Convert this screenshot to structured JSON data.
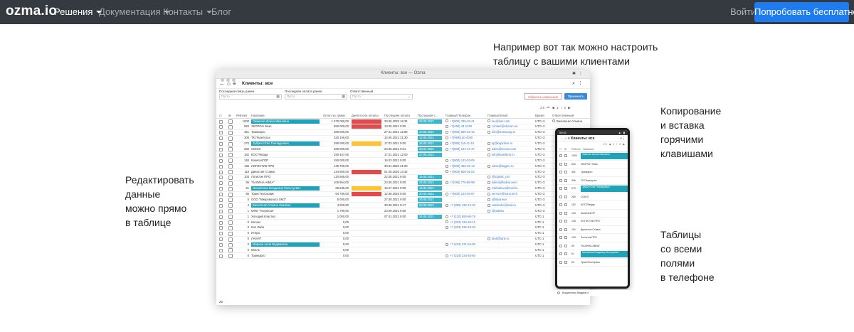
{
  "navbar": {
    "brand": "ozma.io",
    "items": [
      {
        "label": "Решения",
        "has_caret": true,
        "active": true
      },
      {
        "label": "Документация",
        "has_caret": true,
        "active": false
      },
      {
        "label": "Контакты",
        "has_caret": true,
        "active": false
      },
      {
        "label": "Блог",
        "has_caret": false,
        "active": false
      }
    ],
    "login": "Войти",
    "cta": "Попробовать бесплатно",
    "bg_color": "#343a40",
    "cta_color": "#1e7bf0"
  },
  "callouts": {
    "top_line1": "Например вот так можно настроить",
    "top_line2": "таблицу с вашими клиентами",
    "left_line1": "Редактировать",
    "left_line2": "данные",
    "left_line3": "можно прямо",
    "left_line4": "в таблице",
    "right1_line1": "Копирование",
    "right1_line2": "и вставка",
    "right1_line3": "горячими",
    "right1_line4": "клавишами",
    "right2_line1": "Таблицы",
    "right2_line2": "со всеми",
    "right2_line3": "полями",
    "right2_line4": "в телефоне"
  },
  "desktop": {
    "window_title": "Клиенты: все — Ozma",
    "page_title": "Клиенты: все",
    "filters": [
      {
        "label": "Последняя связь ранее",
        "placeholder": "Пусто"
      },
      {
        "label": "Последняя оплата ранее",
        "placeholder": "Пусто"
      },
      {
        "label": "Ответственный",
        "placeholder": "Пусто"
      }
    ],
    "cancel_label": "Сбросить изменения",
    "apply_label": "Применить",
    "pager": "25  ⏮  ◀  1 / 2  ▶",
    "columns": [
      "Рейтинг",
      "Название",
      "Оплат за сумму",
      "Дней после оплаты",
      "Последняя оплата",
      "Последняя с...",
      "Главный Телефон",
      "Главный Email",
      "Время",
      "Ответственный"
    ],
    "rows": [
      {
        "rating": "1000",
        "name": "Ламинин Ирина Ивановна",
        "name_hl": "teal",
        "sum": "1 075 000,00",
        "days": "",
        "days_hl": "red",
        "last_pay": "30.06.2020 16:34",
        "last_contact": "26.06.2021",
        "lc_hl": "cyan",
        "phone": "+7(905) 785-45-21",
        "email": "lux@lam.com",
        "tz": "UTC+3",
        "owner": "Василенко Ульяна"
      },
      {
        "rating": "620",
        "name": "ЭКОРОН Люкс",
        "name_hl": "",
        "sum": "650 000,00",
        "days": "",
        "days_hl": "red",
        "last_pay": "13.05.2021 9:00",
        "last_contact": "",
        "lc_hl": "",
        "phone": "+7(499) 44-1230",
        "email": "contact@ekoron.ua",
        "tz": "UTC+3",
        "owner": ""
      },
      {
        "rating": "451",
        "name": "Транкарго",
        "name_hl": "",
        "sum": "480 000,00",
        "days": "",
        "days_hl": "",
        "last_pay": "27.01.2021 12:56",
        "last_contact": "20.05.2021",
        "lc_hl": "cyan",
        "phone": "+7(800) 905-33-42",
        "email": "info@transcarg.ru",
        "tz": "UTC+3",
        "owner": ""
      },
      {
        "rating": "306",
        "name": "ТК Перепутье",
        "name_hl": "",
        "sum": "320 190,00",
        "days": "",
        "days_hl": "",
        "last_pay": "14.05.2021 21:30",
        "last_contact": "12.05.2021",
        "lc_hl": "cyan",
        "phone": "+7(999)120-4030",
        "email": "",
        "tz": "UTC+3",
        "owner": ""
      },
      {
        "rating": "270",
        "name": "Зубрич Олег Геннадьевич",
        "name_hl": "teal",
        "sum": "290 000,00",
        "days": "",
        "days_hl": "yellow",
        "last_pay": "17.03.2021 9:00",
        "last_contact": "26.05.2021",
        "lc_hl": "cyan",
        "phone": "+7(985) 115-11-15",
        "email": "tg@kupidrive.ru",
        "tz": "UTC+3",
        "owner": ""
      },
      {
        "rating": "260",
        "name": "СОЮЗ",
        "name_hl": "",
        "sum": "280 000,00",
        "days": "",
        "days_hl": "",
        "last_pay": "23.05.2021 9:01",
        "last_contact": "26.04.2021",
        "lc_hl": "cyan",
        "phone": "+7(800) 144-44-47",
        "email": "sales@souzo.com",
        "tz": "UTC+3",
        "owner": ""
      },
      {
        "rating": "182",
        "name": "КОСТФерди",
        "name_hl": "",
        "sum": "190 457,00",
        "days": "",
        "days_hl": "",
        "last_pay": "17.01.2021 12:00",
        "last_contact": "27.06.2021",
        "lc_hl": "cyan",
        "phone": "",
        "email": "info@kostferdi.ru",
        "tz": "UTC+3",
        "owner": ""
      },
      {
        "rating": "140",
        "name": "КапиталГОР",
        "name_hl": "",
        "sum": "150 000,00",
        "days": "",
        "days_hl": "",
        "last_pay": "16.03.2021 9:00",
        "last_contact": "",
        "lc_hl": "",
        "phone": "+7(800) 122-33-05",
        "email": "",
        "tz": "UTC+3",
        "owner": ""
      },
      {
        "rating": "136",
        "name": "ЛОГИСТИК ПРО",
        "name_hl": "",
        "sum": "145 750,00",
        "days": "",
        "days_hl": "",
        "last_pay": "30.01.2020 21:00",
        "last_contact": "",
        "lc_hl": "",
        "phone": "+7(800) 455-33-14",
        "email": "sales@logpro.ru",
        "tz": "UTC+3",
        "owner": ""
      },
      {
        "rating": "116",
        "name": "Династия Ставок",
        "name_hl": "",
        "sum": "124 600,00",
        "days": "",
        "days_hl": "red",
        "last_pay": "01.05.2020 13:32",
        "last_contact": "",
        "lc_hl": "",
        "phone": "+7(800) 605-01-02",
        "email": "",
        "tz": "UTC+3",
        "owner": ""
      },
      {
        "rating": "103",
        "name": "Логистик ПРО",
        "name_hl": "",
        "sum": "110 565,00",
        "days": "",
        "days_hl": "",
        "last_pay": "22.05.2021 9:00",
        "last_contact": "15.05.2021",
        "lc_hl": "cyan",
        "phone": "",
        "email": "@logistic_pro",
        "tz": "UTC+3",
        "owner": ""
      },
      {
        "rating": "95",
        "name": "\"КАЛИНА-АВИА\"",
        "name_hl": "",
        "sum": "106 954,00",
        "days": "",
        "days_hl": "",
        "last_pay": "23.05.2021 9:00",
        "last_contact": "26.05.2021",
        "lc_hl": "cyan",
        "phone": "+7(495) 776-88-99",
        "email": "kalina@kalina.aero",
        "tz": "UTC+3",
        "owner": ""
      },
      {
        "rating": "61",
        "name": "Михайлова Владимир Мельчуевич",
        "name_hl": "teal",
        "sum": "65 535,00",
        "days": "",
        "days_hl": "yellow",
        "last_pay": "16.07.2021 9:00",
        "last_contact": "14.02.2021",
        "lc_hl": "cyan",
        "phone": "",
        "email": "mikhailova@mail.ru",
        "tz": "UTC+3",
        "owner": ""
      },
      {
        "rating": "60",
        "name": "ТрансТехСервис",
        "name_hl": "",
        "sum": "64 780,00",
        "days": "",
        "days_hl": "red",
        "last_pay": "12.08.2020 9:00",
        "last_contact": "20.05.2021",
        "lc_hl": "cyan",
        "phone": "+7(800) 123-45-67",
        "email": "service@trans.tech",
        "tz": "UTC+3",
        "owner": ""
      },
      {
        "rating": "5",
        "name": "ООО \"Микровольта SKG\"",
        "name_hl": "",
        "sum": "5 000,00",
        "days": "",
        "days_hl": "",
        "last_pay": "27.08.2021 9:00",
        "last_contact": "26.05.2021",
        "lc_hl": "cyan",
        "phone": "",
        "email": "@liliyaneus",
        "tz": "UTC+3",
        "owner": ""
      },
      {
        "rating": "4",
        "name": "Василенко Ульяна Львовна",
        "name_hl": "teal",
        "sum": "4 000,00",
        "days": "",
        "days_hl": "",
        "last_pay": "30.08.2021 9:17",
        "last_contact": "26.05.2021",
        "lc_hl": "cyan",
        "phone": "+7 (905) 432-12-33",
        "email": "vasilenko@mail.ru",
        "tz": "UTC+3",
        "owner": ""
      },
      {
        "rating": "1",
        "name": "МФО \"Потрясак\"",
        "name_hl": "",
        "sum": "1 790,00",
        "days": "",
        "days_hl": "",
        "last_pay": "23.09.2021 9:00",
        "last_contact": "",
        "lc_hl": "",
        "phone": "",
        "email": "@patrisa",
        "tz": "UTC+3",
        "owner": ""
      },
      {
        "rating": "1",
        "name": "Холодий Кластер",
        "name_hl": "",
        "sum": "1 000,00",
        "days": "",
        "days_hl": "",
        "last_pay": "07.01.2021 9:00",
        "last_contact": "26.05.2021",
        "lc_hl": "cyan",
        "phone": "+7 (120) 680-90-79",
        "email": "",
        "tz": "UTC-1",
        "owner": ""
      },
      {
        "rating": "0",
        "name": "Интекс",
        "name_hl": "",
        "sum": "0,00",
        "days": "",
        "days_hl": "",
        "last_pay": "",
        "last_contact": "",
        "lc_hl": "",
        "phone": "+7 (923) 234-20-41",
        "email": "",
        "tz": "UTC-1",
        "owner": ""
      },
      {
        "rating": "0",
        "name": "Кол Лайн",
        "name_hl": "",
        "sum": "0,00",
        "days": "",
        "days_hl": "",
        "last_pay": "",
        "last_contact": "",
        "lc_hl": "",
        "phone": "+7 (923) 225-45-02",
        "email": "",
        "tz": "UTC-1",
        "owner": ""
      },
      {
        "rating": "0",
        "name": "Итера",
        "name_hl": "",
        "sum": "0,00",
        "days": "",
        "days_hl": "",
        "last_pay": "",
        "last_contact": "",
        "lc_hl": "",
        "phone": "",
        "email": "",
        "tz": "UTC-1",
        "owner": ""
      },
      {
        "rating": "0",
        "name": "ЛАНИТ",
        "name_hl": "",
        "sum": "0,00",
        "days": "",
        "days_hl": "",
        "last_pay": "",
        "last_contact": "",
        "lc_hl": "",
        "phone": "",
        "email": "lanit@lanit.ru",
        "tz": "UTC-1",
        "owner": ""
      },
      {
        "rating": "0",
        "name": "Марина Анна Вадимовна",
        "name_hl": "teal",
        "sum": "0,00",
        "days": "",
        "days_hl": "",
        "last_pay": "",
        "last_contact": "",
        "lc_hl": "",
        "phone": "+7 (223) 231-54-00",
        "email": "",
        "tz": "UTC-1",
        "owner": ""
      },
      {
        "rating": "0",
        "name": "Мигль",
        "name_hl": "",
        "sum": "0,00",
        "days": "",
        "days_hl": "",
        "last_pay": "",
        "last_contact": "",
        "lc_hl": "",
        "phone": "",
        "email": "",
        "tz": "UTC-1",
        "owner": ""
      },
      {
        "rating": "0",
        "name": "Транкарго",
        "name_hl": "",
        "sum": "0,00",
        "days": "",
        "days_hl": "",
        "last_pay": "",
        "last_contact": "",
        "lc_hl": "",
        "phone": "+7 (224) 234-45-60",
        "email": "",
        "tz": "UTC-1",
        "owner": ""
      }
    ],
    "footer_count": "26"
  },
  "phone": {
    "status_time": "09:41",
    "status_icons": "▲ ▮",
    "title": "Клиенты: все",
    "pager": "25  ◀  1 / 2  ▶",
    "columns": [
      "Рейтинг",
      "Название"
    ],
    "rows": [
      {
        "num": "1000",
        "name": "Ламинин Ирина Ивановна",
        "hl": true
      },
      {
        "num": "620",
        "name": "ЭКОРОН Люкс",
        "hl": false
      },
      {
        "num": "451",
        "name": "Транкарго",
        "hl": false
      },
      {
        "num": "306",
        "name": "ТК Перепутье",
        "hl": false
      },
      {
        "num": "270",
        "name": "Зубрич Олег Геннадьевич",
        "hl": true
      },
      {
        "num": "260",
        "name": "СОЮЗ",
        "hl": false
      },
      {
        "num": "182",
        "name": "КОСТФерди",
        "hl": false
      },
      {
        "num": "140",
        "name": "КапиталГОР",
        "hl": false
      },
      {
        "num": "136",
        "name": "ЛОГИСТИК ПРО",
        "hl": false
      },
      {
        "num": "116",
        "name": "Династия Ставок",
        "hl": false
      },
      {
        "num": "103",
        "name": "Логистик ПРО",
        "hl": false
      },
      {
        "num": "95",
        "name": "\"КАЛИНА-АВИА\"",
        "hl": false
      },
      {
        "num": "61",
        "name": "Михайлова Владимир Мельчуевич",
        "hl": true
      },
      {
        "num": "60",
        "name": "ТрансТехСервис",
        "hl": false
      }
    ],
    "footer_owner": "Кириленко Вадим И"
  }
}
